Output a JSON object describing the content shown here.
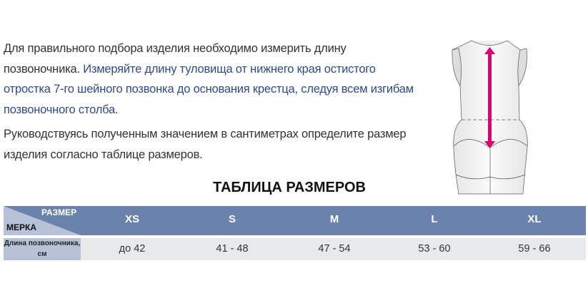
{
  "intro": {
    "p1_plain": "Для правильного подбора изделия необходимо измерить длину позвоночника.",
    "p1_blue": "Измеряйте длину туловища от нижнего края остистого отростка 7-го шейного позвонка до основания крестца, следуя всем изгибам позвоночного столба.",
    "p2": "Руководствуясь полученным значением в сантиметрах определите размер изделия согласно таблице размеров."
  },
  "colors": {
    "accent_text": "#2f4a8a",
    "table_header": "#6b82ac",
    "arrow": "#e0006f"
  },
  "table": {
    "title": "ТАБЛИЦА РАЗМЕРОВ",
    "corner_top": "РАЗМЕР",
    "corner_bottom": "МЕРКА",
    "sizes": [
      "XS",
      "S",
      "M",
      "L",
      "XL"
    ],
    "row_label": "Длина позвоночника, см",
    "values": [
      "до 42",
      "41 - 48",
      "47 - 54",
      "53 - 60",
      "59 - 66"
    ]
  }
}
